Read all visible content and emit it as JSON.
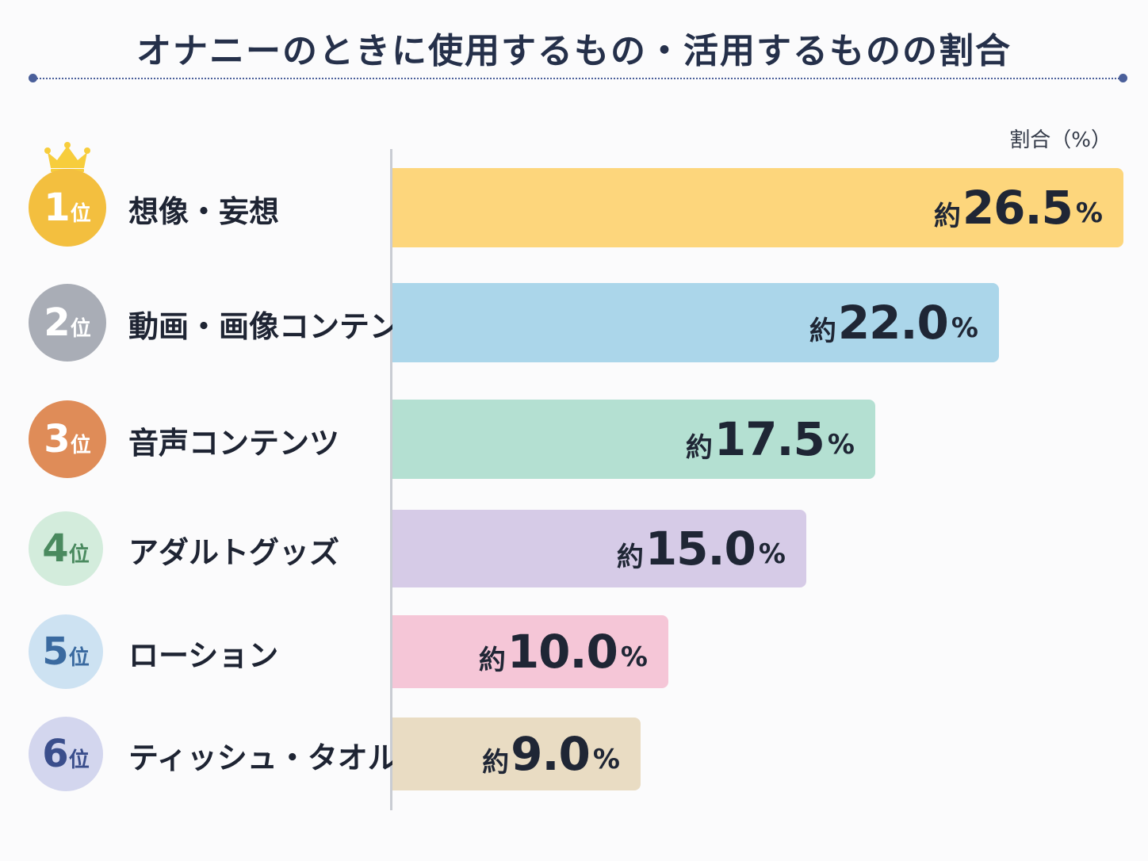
{
  "title": "オナニーのときに使用するもの・活用するものの割合",
  "unit_label": "割合（%）",
  "rank_suffix": "位",
  "value_prefix": "約",
  "value_suffix": "%",
  "chart_data": {
    "type": "bar",
    "orientation": "horizontal",
    "title": "オナニーのときに使用するもの・活用するものの割合",
    "ylabel": "割合（%）",
    "categories": [
      "想像・妄想",
      "動画・画像コンテンツ",
      "音声コンテンツ",
      "アダルトグッズ",
      "ローション",
      "ティッシュ・タオル類"
    ],
    "values": [
      26.5,
      22.0,
      17.5,
      15.0,
      10.0,
      9.0
    ],
    "value_labels": [
      "26.5",
      "22.0",
      "17.5",
      "15.0",
      "10.0",
      "9.0"
    ],
    "ranks": [
      "1",
      "2",
      "3",
      "4",
      "5",
      "6"
    ],
    "xlim": [
      0,
      26.5
    ],
    "bar_colors": [
      "#fdd67c",
      "#abd6ea",
      "#b4e0d2",
      "#d6cbe7",
      "#f5c6d7",
      "#e9dcc3"
    ],
    "badge_colors": [
      "#f3bf3f",
      "#a9adb6",
      "#df8c58",
      "#d3ecdc",
      "#cde2f2",
      "#d3d6ee"
    ],
    "badge_text_colors": [
      "#ffffff",
      "#ffffff",
      "#ffffff",
      "#4a8a5f",
      "#3a6aa0",
      "#3a4e8c"
    ],
    "crown_color": "#f7cd3c",
    "grid": false
  }
}
